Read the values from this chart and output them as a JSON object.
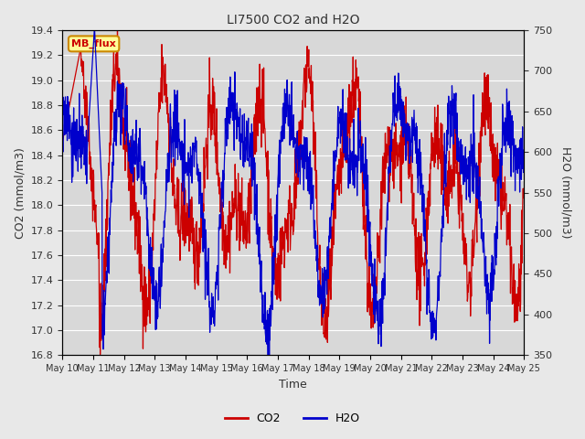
{
  "title": "LI7500 CO2 and H2O",
  "xlabel": "Time",
  "ylabel_left": "CO2 (mmol/m3)",
  "ylabel_right": "H2O (mmol/m3)",
  "ylim_left": [
    16.8,
    19.4
  ],
  "ylim_right": [
    350,
    750
  ],
  "xtick_labels": [
    "May 10",
    "May 11",
    "May 12",
    "May 13",
    "May 14",
    "May 15",
    "May 16",
    "May 17",
    "May 18",
    "May 19",
    "May 20",
    "May 21",
    "May 22",
    "May 23",
    "May 24",
    "May 25"
  ],
  "yticks_left": [
    16.8,
    17.0,
    17.2,
    17.4,
    17.6,
    17.8,
    18.0,
    18.2,
    18.4,
    18.6,
    18.8,
    19.0,
    19.2,
    19.4
  ],
  "yticks_right": [
    350,
    400,
    450,
    500,
    550,
    600,
    650,
    700,
    750
  ],
  "co2_color": "#cc0000",
  "h2o_color": "#0000cc",
  "background_color": "#e8e8e8",
  "plot_bg_color": "#d8d8d8",
  "annotation_text": "MB_flux",
  "annotation_bg": "#ffff99",
  "annotation_border": "#cc8800",
  "legend_co2": "CO2",
  "legend_h2o": "H2O",
  "n_days": 15,
  "seed": 42
}
